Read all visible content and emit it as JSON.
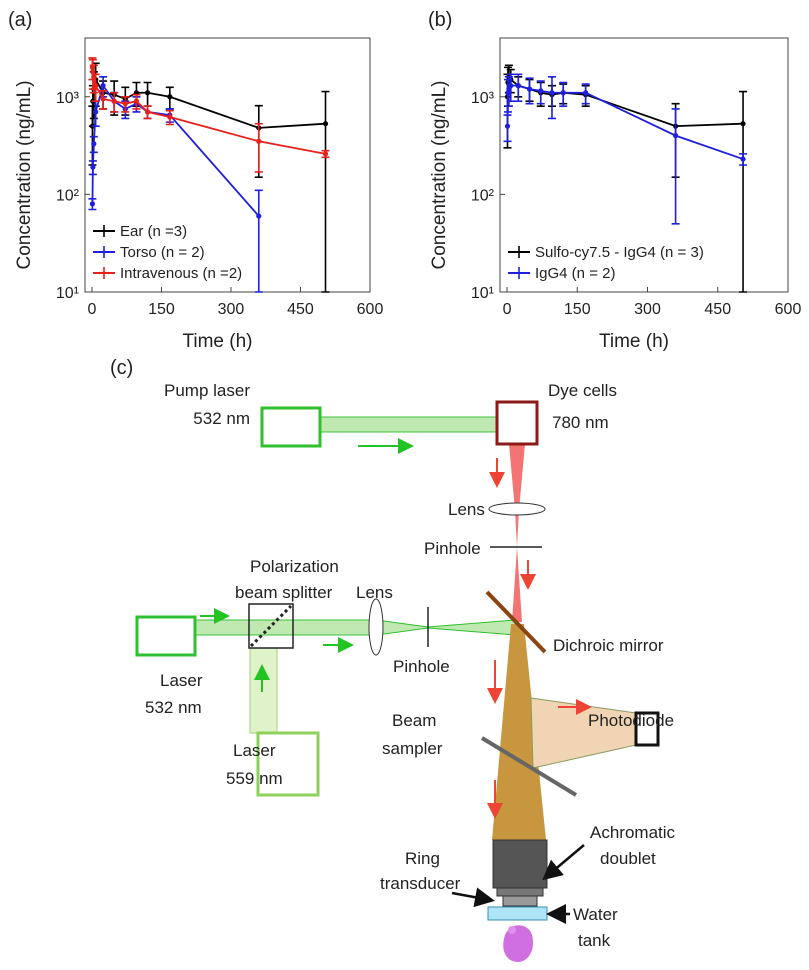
{
  "chart_data": [
    {
      "type": "line",
      "panel_label": "(a)",
      "xlabel": "Time (h)",
      "ylabel": "Concentration (ng/mL)",
      "log_y": true,
      "xlim": [
        -15,
        600
      ],
      "ylim": [
        10,
        4000
      ],
      "xticks": [
        0,
        150,
        300,
        450,
        600
      ],
      "yticks": [
        {
          "value": 10,
          "label": "10¹"
        },
        {
          "value": 100,
          "label": "10²"
        },
        {
          "value": 1000,
          "label": "10³"
        }
      ],
      "legend": "lower left",
      "series": [
        {
          "name": "Ear (n =3)",
          "color": "#000000",
          "x": [
            1,
            2,
            4,
            8,
            24,
            48,
            72,
            96,
            120,
            168,
            360,
            504
          ],
          "values": [
            500,
            900,
            1200,
            1500,
            1100,
            1050,
            950,
            1100,
            1100,
            1000,
            480,
            530
          ],
          "errors": [
            300,
            400,
            600,
            700,
            350,
            400,
            300,
            300,
            300,
            250,
            330,
            600
          ]
        },
        {
          "name": "Torso (n = 2)",
          "color": "#1f1fe0",
          "x": [
            1,
            2,
            4,
            8,
            24,
            48,
            72,
            96,
            120,
            168,
            360
          ],
          "values": [
            80,
            190,
            330,
            700,
            1300,
            900,
            750,
            850,
            700,
            650,
            60
          ],
          "errors": [
            10,
            30,
            60,
            200,
            300,
            200,
            150,
            150,
            100,
            100,
            50
          ]
        },
        {
          "name": "Intravenous (n =2)",
          "color": "#e8201c",
          "x": [
            1,
            2,
            4,
            8,
            24,
            48,
            72,
            96,
            120,
            168,
            360,
            504
          ],
          "values": [
            2000,
            1800,
            1600,
            1300,
            950,
            900,
            850,
            900,
            700,
            620,
            350,
            260
          ],
          "errors": [
            500,
            600,
            500,
            400,
            200,
            200,
            150,
            150,
            100,
            100,
            180,
            20
          ]
        }
      ]
    },
    {
      "type": "line",
      "panel_label": "(b)",
      "xlabel": "Time (h)",
      "ylabel": "Concentration (ng/mL)",
      "log_y": true,
      "xlim": [
        -15,
        600
      ],
      "ylim": [
        10,
        4000
      ],
      "xticks": [
        0,
        150,
        300,
        450,
        600
      ],
      "yticks": [
        {
          "value": 10,
          "label": "10¹"
        },
        {
          "value": 100,
          "label": "10²"
        },
        {
          "value": 1000,
          "label": "10³"
        }
      ],
      "legend": "lower left",
      "series": [
        {
          "name": "Sulfo-cy7.5 - IgG4 (n = 3)",
          "color": "#000000",
          "x": [
            1,
            2,
            4,
            8,
            24,
            48,
            72,
            96,
            120,
            168,
            360,
            504
          ],
          "values": [
            1000,
            1400,
            1600,
            1500,
            1300,
            1200,
            1100,
            1050,
            1100,
            1050,
            500,
            530
          ],
          "errors": [
            700,
            600,
            500,
            400,
            300,
            300,
            300,
            250,
            250,
            250,
            350,
            600
          ]
        },
        {
          "name": "IgG4 (n = 2)",
          "color": "#1f1fe0",
          "x": [
            1,
            2,
            4,
            8,
            24,
            48,
            72,
            96,
            120,
            168,
            360,
            504
          ],
          "values": [
            500,
            1100,
            1200,
            1300,
            1300,
            1200,
            1150,
            1100,
            1100,
            1100,
            400,
            230
          ],
          "errors": [
            150,
            400,
            400,
            400,
            400,
            350,
            300,
            500,
            300,
            250,
            350,
            30
          ]
        }
      ]
    }
  ],
  "diagram": {
    "label": "(c)",
    "pump_laser": [
      "Pump laser",
      "532 nm"
    ],
    "dye_cells": [
      "Dye cells",
      "780 nm"
    ],
    "lens_top": "Lens",
    "pinhole_top": "Pinhole",
    "beam_splitter": [
      "Polarization",
      "beam splitter"
    ],
    "lens_left": "Lens",
    "laser_532": [
      "Laser",
      "532 nm"
    ],
    "pinhole_left": "Pinhole",
    "dichroic": "Dichroic mirror",
    "laser_559": [
      "Laser",
      "559 nm"
    ],
    "beam_sampler": [
      "Beam",
      "sampler"
    ],
    "photodiode": "Photodiode",
    "achromatic": [
      "Achromatic",
      "doublet"
    ],
    "ring": [
      "Ring",
      "transducer"
    ],
    "water": [
      "Water",
      "tank"
    ]
  }
}
